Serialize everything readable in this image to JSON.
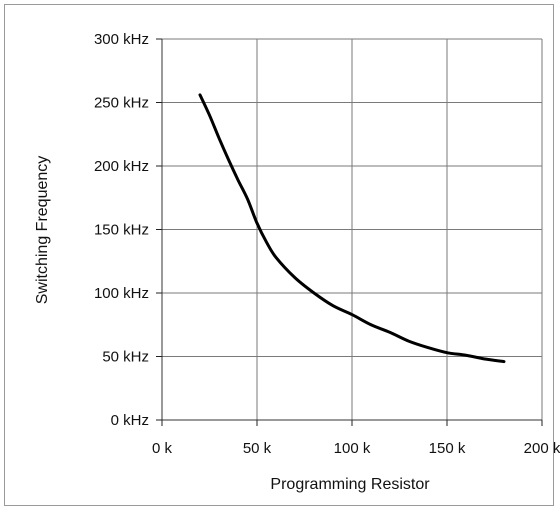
{
  "chart_data": {
    "type": "line",
    "title": "",
    "xlabel": "Programming Resistor",
    "ylabel": "Switching Frequency",
    "xlim": [
      0,
      200
    ],
    "ylim": [
      0,
      300
    ],
    "x_ticks": [
      {
        "value": 0,
        "label": "0 k"
      },
      {
        "value": 50,
        "label": "50 k"
      },
      {
        "value": 100,
        "label": "100 k"
      },
      {
        "value": 150,
        "label": "150 k"
      },
      {
        "value": 200,
        "label": "200 k"
      }
    ],
    "y_ticks": [
      {
        "value": 0,
        "label": "0 kHz"
      },
      {
        "value": 50,
        "label": "50 kHz"
      },
      {
        "value": 100,
        "label": "100 kHz"
      },
      {
        "value": 150,
        "label": "150 kHz"
      },
      {
        "value": 200,
        "label": "200 kHz"
      },
      {
        "value": 250,
        "label": "250 kHz"
      },
      {
        "value": 300,
        "label": "300 kHz"
      }
    ],
    "grid": true,
    "legend": "none",
    "series": [
      {
        "color": "#000000",
        "x": [
          20,
          25,
          30,
          35,
          40,
          45,
          50,
          55,
          60,
          70,
          80,
          90,
          100,
          110,
          120,
          130,
          140,
          150,
          160,
          170,
          180
        ],
        "y": [
          256,
          240,
          222,
          205,
          189,
          174,
          155,
          140,
          128,
          112,
          100,
          90,
          83,
          75,
          69,
          62,
          57,
          53,
          51,
          48,
          46
        ]
      }
    ]
  }
}
